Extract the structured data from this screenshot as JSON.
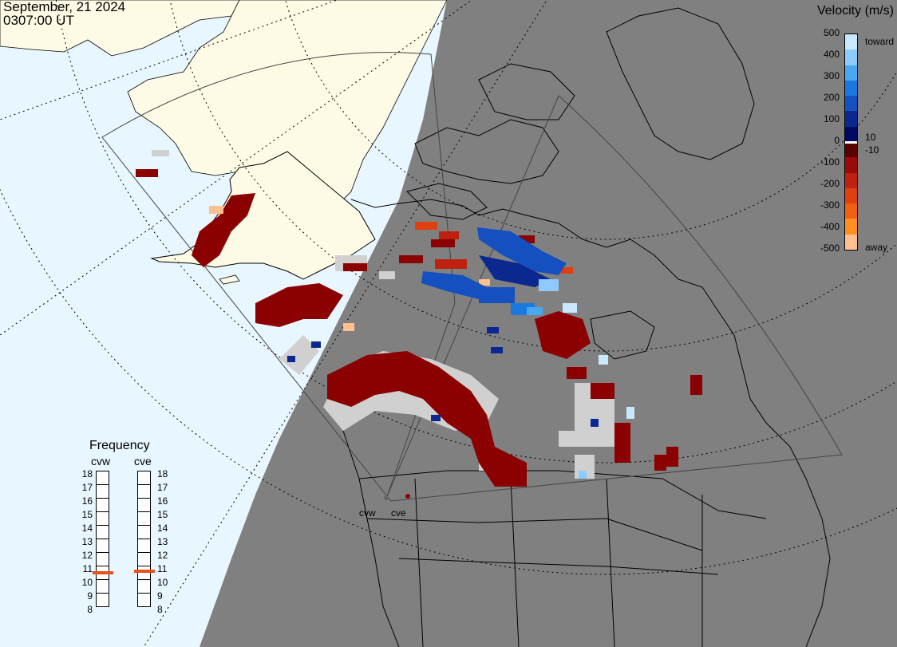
{
  "header": {
    "date": "September, 21 2024",
    "time": "0307:00 UT"
  },
  "velocity_scale": {
    "title": "Velocity (m/s)",
    "ticks": [
      "500",
      "400",
      "300",
      "200",
      "100",
      "0",
      "-100",
      "-200",
      "-300",
      "-400",
      "-500"
    ],
    "toward_label": "toward",
    "away_label": "away",
    "small_pos": "10",
    "small_neg": "-10",
    "colors": [
      "#c8e8ff",
      "#8ccaff",
      "#48a8f0",
      "#1a78e0",
      "#1450c0",
      "#0a2890",
      "#000a60",
      "#5a0000",
      "#9a0a0a",
      "#c02010",
      "#e04010",
      "#f06010",
      "#ff9020",
      "#ffc090"
    ]
  },
  "frequency_panel": {
    "title": "Frequency",
    "columns": [
      {
        "name": "cvw",
        "selected_mhz": 10.9
      },
      {
        "name": "cve",
        "selected_mhz": 11.0
      }
    ],
    "ticks": [
      "18",
      "17",
      "16",
      "15",
      "14",
      "13",
      "12",
      "11",
      "10",
      "9",
      "8"
    ],
    "marker_color": "#e8501e"
  },
  "radar_sites": [
    {
      "name": "cvw"
    },
    {
      "name": "cve"
    }
  ],
  "map_colors": {
    "ocean_day": "#e8f6ff",
    "land_day": "#fdfbe6",
    "night": "#808080",
    "ground_scatter": "#d0d0d0"
  }
}
